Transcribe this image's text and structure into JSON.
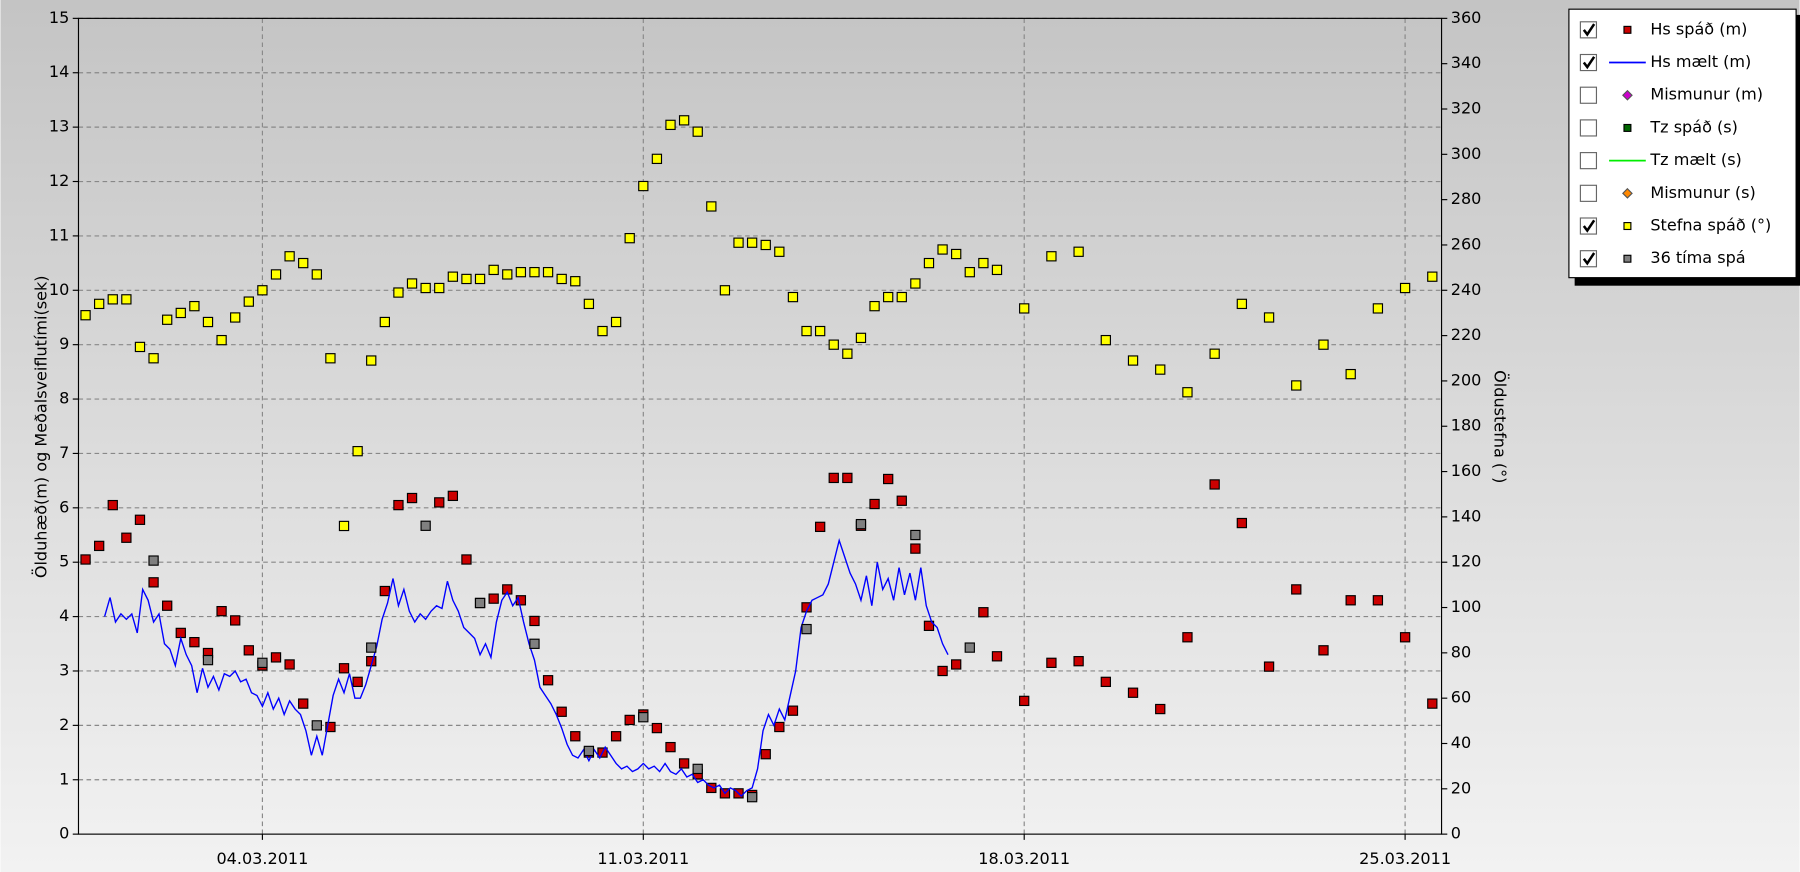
{
  "chart_data": {
    "type": "scatter-line",
    "y_label": "Ölduhæð(m) og Meðalsveiflutími(sek)",
    "y2_label": "Öldustefna (°)",
    "xlim": [
      0.62,
      25.67
    ],
    "xticks": [
      {
        "value": 4,
        "label": "04.03.2011"
      },
      {
        "value": 11,
        "label": "11.03.2011"
      },
      {
        "value": 18,
        "label": "18.03.2011"
      },
      {
        "value": 25,
        "label": "25.03.2011"
      }
    ],
    "ylim": [
      0,
      15
    ],
    "yticks": [
      0,
      1,
      2,
      3,
      4,
      5,
      6,
      7,
      8,
      9,
      10,
      11,
      12,
      13,
      14,
      15
    ],
    "y2lim": [
      0,
      360
    ],
    "y2ticks": [
      0,
      20,
      40,
      60,
      80,
      100,
      120,
      140,
      160,
      180,
      200,
      220,
      240,
      260,
      280,
      300,
      320,
      340,
      360
    ],
    "grid": true,
    "legend": "right",
    "series": [
      {
        "name": "Hs spáð (m)",
        "color": "#cc0000",
        "marker": "square",
        "visible": true,
        "x": [
          0.75,
          1.0,
          1.25,
          1.5,
          1.75,
          2.0,
          2.25,
          2.5,
          2.75,
          3.0,
          3.25,
          3.5,
          3.75,
          4.0,
          4.25,
          4.5,
          4.75,
          5.25,
          5.5,
          5.75,
          6.0,
          6.25,
          6.5,
          6.75,
          7.25,
          7.5,
          7.75,
          8.0,
          8.25,
          8.5,
          8.75,
          9.0,
          9.25,
          9.5,
          9.75,
          10.0,
          10.25,
          10.5,
          10.75,
          11.0,
          11.25,
          11.5,
          11.75,
          12.0,
          12.25,
          12.5,
          12.75,
          13.0,
          13.25,
          13.5,
          13.75,
          14.0,
          14.25,
          14.5,
          14.75,
          15.0,
          15.25,
          15.5,
          15.75,
          16.0,
          16.25,
          16.5,
          16.75,
          17.25,
          17.5,
          18.0,
          18.5,
          19.0,
          19.5,
          20.0,
          20.5,
          21.0,
          21.5,
          22.0,
          22.5,
          23.0,
          23.5,
          24.0,
          24.5,
          25.0,
          25.5
        ],
        "values": [
          5.05,
          5.3,
          6.05,
          5.45,
          5.78,
          4.63,
          4.2,
          3.7,
          3.53,
          3.33,
          4.1,
          3.93,
          3.38,
          3.1,
          3.25,
          3.12,
          2.4,
          1.97,
          3.05,
          2.8,
          3.18,
          4.47,
          6.05,
          6.18,
          6.1,
          6.22,
          5.05,
          4.25,
          4.33,
          4.5,
          4.3,
          3.92,
          2.83,
          2.25,
          1.8,
          1.5,
          1.5,
          1.8,
          2.1,
          2.2,
          1.95,
          1.6,
          1.3,
          1.1,
          0.85,
          0.75,
          0.75,
          0.72,
          1.47,
          1.97,
          2.27,
          4.17,
          5.65,
          6.55,
          6.55,
          5.67,
          6.07,
          6.53,
          6.13,
          5.25,
          3.83,
          3.0,
          3.12,
          4.08,
          3.27,
          2.45,
          3.15,
          3.18,
          2.8,
          2.6,
          2.3,
          3.62,
          6.43,
          5.72,
          3.08,
          4.5,
          3.38,
          4.3,
          4.3,
          3.62,
          2.4
        ]
      },
      {
        "name": "Hs mælt (m)",
        "color": "#0000ff",
        "marker": "line",
        "visible": true,
        "x": [
          1.1,
          1.2,
          1.3,
          1.4,
          1.5,
          1.6,
          1.7,
          1.8,
          1.9,
          2.0,
          2.1,
          2.2,
          2.3,
          2.4,
          2.5,
          2.6,
          2.7,
          2.8,
          2.9,
          3.0,
          3.1,
          3.2,
          3.3,
          3.4,
          3.5,
          3.6,
          3.7,
          3.8,
          3.9,
          4.0,
          4.1,
          4.2,
          4.3,
          4.4,
          4.5,
          4.6,
          4.7,
          4.8,
          4.9,
          5.0,
          5.1,
          5.2,
          5.3,
          5.4,
          5.5,
          5.6,
          5.7,
          5.8,
          5.9,
          6.0,
          6.1,
          6.2,
          6.3,
          6.4,
          6.5,
          6.6,
          6.7,
          6.8,
          6.9,
          7.0,
          7.1,
          7.2,
          7.3,
          7.4,
          7.5,
          7.6,
          7.7,
          7.8,
          7.9,
          8.0,
          8.1,
          8.2,
          8.3,
          8.4,
          8.5,
          8.6,
          8.7,
          8.8,
          8.9,
          9.0,
          9.1,
          9.2,
          9.3,
          9.4,
          9.5,
          9.6,
          9.7,
          9.8,
          9.9,
          10.0,
          10.1,
          10.2,
          10.3,
          10.4,
          10.5,
          10.6,
          10.7,
          10.8,
          10.9,
          11.0,
          11.1,
          11.2,
          11.3,
          11.4,
          11.5,
          11.6,
          11.7,
          11.8,
          11.9,
          12.0,
          12.1,
          12.2,
          12.3,
          12.4,
          12.5,
          12.6,
          12.7,
          12.8,
          12.9,
          13.0,
          13.1,
          13.2,
          13.3,
          13.4,
          13.5,
          13.6,
          13.7,
          13.8,
          13.9,
          14.0,
          14.1,
          14.2,
          14.3,
          14.4,
          14.5,
          14.6,
          14.7,
          14.8,
          14.9,
          15.0,
          15.1,
          15.2,
          15.3,
          15.4,
          15.5,
          15.6,
          15.7,
          15.8,
          15.9,
          16.0,
          16.1,
          16.2,
          16.3,
          16.4,
          16.5,
          16.6
        ],
        "values": [
          4.0,
          4.35,
          3.9,
          4.05,
          3.95,
          4.05,
          3.7,
          4.5,
          4.3,
          3.9,
          4.05,
          3.5,
          3.4,
          3.1,
          3.6,
          3.3,
          3.1,
          2.6,
          3.05,
          2.7,
          2.9,
          2.65,
          2.95,
          2.9,
          3.0,
          2.8,
          2.85,
          2.6,
          2.55,
          2.35,
          2.6,
          2.3,
          2.5,
          2.2,
          2.45,
          2.3,
          2.2,
          1.9,
          1.45,
          1.8,
          1.45,
          2.0,
          2.55,
          2.85,
          2.6,
          2.95,
          2.5,
          2.5,
          2.75,
          3.1,
          3.45,
          3.95,
          4.25,
          4.7,
          4.2,
          4.5,
          4.1,
          3.9,
          4.05,
          3.95,
          4.1,
          4.2,
          4.15,
          4.65,
          4.3,
          4.1,
          3.8,
          3.7,
          3.6,
          3.3,
          3.5,
          3.25,
          3.9,
          4.3,
          4.45,
          4.2,
          4.35,
          3.9,
          3.5,
          3.2,
          2.7,
          2.55,
          2.4,
          2.2,
          1.95,
          1.65,
          1.45,
          1.4,
          1.55,
          1.35,
          1.55,
          1.4,
          1.6,
          1.45,
          1.3,
          1.2,
          1.25,
          1.15,
          1.2,
          1.3,
          1.2,
          1.25,
          1.15,
          1.3,
          1.15,
          1.1,
          1.2,
          1.05,
          1.1,
          0.95,
          1.0,
          0.9,
          0.85,
          0.9,
          0.75,
          0.85,
          0.8,
          0.7,
          0.8,
          0.85,
          1.2,
          1.9,
          2.2,
          2.0,
          2.3,
          2.1,
          2.55,
          3.0,
          3.8,
          4.1,
          4.3,
          4.35,
          4.4,
          4.6,
          5.0,
          5.4,
          5.1,
          4.8,
          4.6,
          4.3,
          4.75,
          4.2,
          5.0,
          4.5,
          4.7,
          4.3,
          4.9,
          4.4,
          4.8,
          4.3,
          4.9,
          4.2,
          3.9,
          3.8,
          3.5,
          3.3
        ]
      },
      {
        "name": "Mismunur (m)",
        "color": "#cc00cc",
        "marker": "diamond",
        "visible": false,
        "x": [],
        "values": []
      },
      {
        "name": "Tz spáð (s)",
        "color": "#006600",
        "marker": "square",
        "visible": false,
        "x": [],
        "values": []
      },
      {
        "name": "Tz mælt (s)",
        "color": "#00ee00",
        "marker": "line",
        "visible": false,
        "x": [],
        "values": []
      },
      {
        "name": "Mismunur (s)",
        "color": "#ff8800",
        "marker": "diamond",
        "visible": false,
        "x": [],
        "values": []
      },
      {
        "name": "Stefna spáð (°)",
        "color": "#ffff00",
        "marker": "square",
        "visible": true,
        "axis": "y2",
        "x": [
          0.75,
          1.0,
          1.25,
          1.5,
          1.75,
          2.0,
          2.25,
          2.5,
          2.75,
          3.0,
          3.25,
          3.5,
          3.75,
          4.0,
          4.25,
          4.5,
          4.75,
          5.0,
          5.25,
          5.5,
          5.75,
          6.0,
          6.25,
          6.5,
          6.75,
          7.0,
          7.25,
          7.5,
          7.75,
          8.0,
          8.25,
          8.5,
          8.75,
          9.0,
          9.25,
          9.5,
          9.75,
          10.0,
          10.25,
          10.5,
          10.75,
          11.0,
          11.25,
          11.5,
          11.75,
          12.0,
          12.25,
          12.5,
          12.75,
          13.0,
          13.25,
          13.5,
          13.75,
          14.0,
          14.25,
          14.5,
          14.75,
          15.0,
          15.25,
          15.5,
          15.75,
          16.0,
          16.25,
          16.5,
          16.75,
          17.0,
          17.25,
          17.5,
          18.0,
          18.5,
          19.0,
          19.5,
          20.0,
          20.5,
          21.0,
          21.5,
          22.0,
          22.5,
          23.0,
          23.5,
          24.0,
          24.5,
          25.0,
          25.5
        ],
        "values": [
          229,
          234,
          236,
          236,
          215,
          210,
          227,
          230,
          233,
          226,
          218,
          228,
          235,
          240,
          247,
          255,
          252,
          247,
          210,
          136,
          169,
          209,
          226,
          239,
          243,
          241,
          241,
          246,
          245,
          245,
          249,
          247,
          248,
          248,
          248,
          245,
          244,
          234,
          222,
          226,
          263,
          286,
          298,
          313,
          315,
          310,
          277,
          240,
          261,
          261,
          260,
          257,
          237,
          222,
          222,
          216,
          212,
          219,
          233,
          237,
          237,
          243,
          252,
          258,
          256,
          248,
          252,
          249,
          232,
          255,
          257,
          218,
          209,
          205,
          195,
          212,
          234,
          228,
          198,
          216,
          203,
          232,
          241,
          246
        ]
      },
      {
        "name": "36 tíma spá",
        "color": "#808080",
        "marker": "square",
        "visible": true,
        "x": [
          2.0,
          3.0,
          4.0,
          5.0,
          6.0,
          7.0,
          8.0,
          9.0,
          10.0,
          11.0,
          12.0,
          13.0,
          14.0,
          15.0,
          16.0,
          17.0
        ],
        "values": [
          5.03,
          3.2,
          3.15,
          2.0,
          3.43,
          5.67,
          4.25,
          3.5,
          1.53,
          2.15,
          1.2,
          0.68,
          3.77,
          5.7,
          5.5,
          3.43
        ]
      }
    ]
  }
}
